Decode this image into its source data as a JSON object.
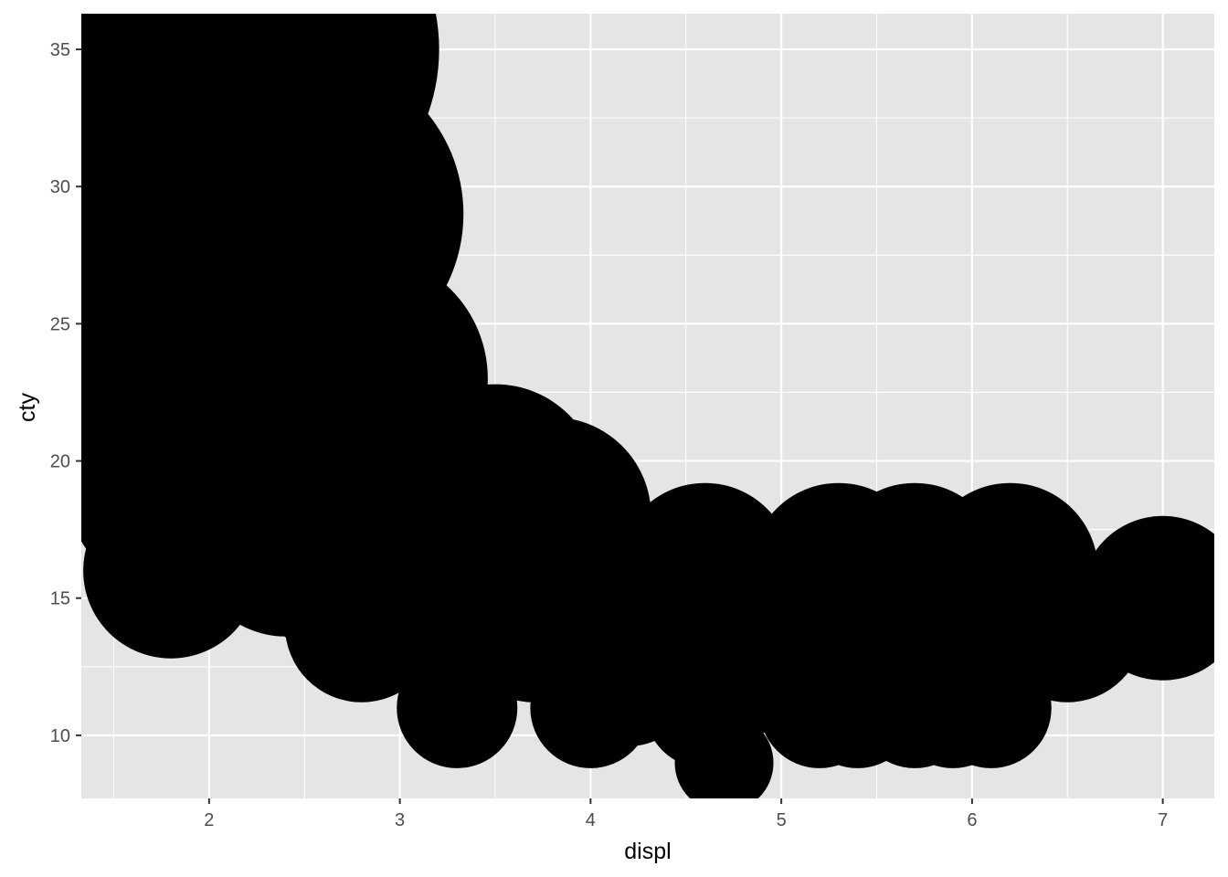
{
  "chart_data": {
    "type": "scatter",
    "title": "",
    "xlabel": "displ",
    "ylabel": "cty",
    "xlim": [
      1.33,
      7.27
    ],
    "ylim": [
      7.7,
      36.3
    ],
    "x_ticks": [
      2,
      3,
      4,
      5,
      6,
      7
    ],
    "y_ticks": [
      10,
      15,
      20,
      25,
      30,
      35
    ],
    "x_tick_labels": [
      "2",
      "3",
      "4",
      "5",
      "6",
      "7"
    ],
    "y_tick_labels": [
      "10",
      "15",
      "20",
      "25",
      "30",
      "35"
    ],
    "grid": true,
    "legend": "none",
    "point_color": "#000000",
    "panel_background": "#E5E5E5",
    "grid_color": "#FFFFFF",
    "point_size_note": "size proportional to cty",
    "points": [
      {
        "x": 1.8,
        "y": 16
      },
      {
        "x": 1.8,
        "y": 19
      },
      {
        "x": 1.8,
        "y": 21
      },
      {
        "x": 1.8,
        "y": 25
      },
      {
        "x": 1.8,
        "y": 28
      },
      {
        "x": 1.9,
        "y": 33
      },
      {
        "x": 1.9,
        "y": 35
      },
      {
        "x": 2.0,
        "y": 18
      },
      {
        "x": 2.0,
        "y": 21
      },
      {
        "x": 2.0,
        "y": 22
      },
      {
        "x": 2.0,
        "y": 26
      },
      {
        "x": 2.0,
        "y": 29
      },
      {
        "x": 2.2,
        "y": 33
      },
      {
        "x": 2.2,
        "y": 35
      },
      {
        "x": 2.4,
        "y": 17
      },
      {
        "x": 2.4,
        "y": 19
      },
      {
        "x": 2.4,
        "y": 21
      },
      {
        "x": 2.4,
        "y": 24
      },
      {
        "x": 2.5,
        "y": 20
      },
      {
        "x": 2.5,
        "y": 23
      },
      {
        "x": 2.5,
        "y": 29
      },
      {
        "x": 2.7,
        "y": 16
      },
      {
        "x": 2.7,
        "y": 19
      },
      {
        "x": 2.8,
        "y": 14
      },
      {
        "x": 2.8,
        "y": 17
      },
      {
        "x": 2.8,
        "y": 20
      },
      {
        "x": 2.8,
        "y": 23
      },
      {
        "x": 3.0,
        "y": 15
      },
      {
        "x": 3.0,
        "y": 18
      },
      {
        "x": 3.1,
        "y": 18
      },
      {
        "x": 3.3,
        "y": 11
      },
      {
        "x": 3.3,
        "y": 14
      },
      {
        "x": 3.3,
        "y": 17
      },
      {
        "x": 3.3,
        "y": 19
      },
      {
        "x": 3.5,
        "y": 15
      },
      {
        "x": 3.5,
        "y": 19
      },
      {
        "x": 3.7,
        "y": 14
      },
      {
        "x": 3.8,
        "y": 16
      },
      {
        "x": 3.8,
        "y": 18
      },
      {
        "x": 4.0,
        "y": 11
      },
      {
        "x": 4.0,
        "y": 14
      },
      {
        "x": 4.0,
        "y": 16
      },
      {
        "x": 4.2,
        "y": 12
      },
      {
        "x": 4.2,
        "y": 15
      },
      {
        "x": 4.3,
        "y": 14
      },
      {
        "x": 4.6,
        "y": 11
      },
      {
        "x": 4.6,
        "y": 13
      },
      {
        "x": 4.6,
        "y": 16
      },
      {
        "x": 4.7,
        "y": 9
      },
      {
        "x": 4.7,
        "y": 12
      },
      {
        "x": 4.7,
        "y": 14
      },
      {
        "x": 5.2,
        "y": 11
      },
      {
        "x": 5.3,
        "y": 14
      },
      {
        "x": 5.3,
        "y": 16
      },
      {
        "x": 5.4,
        "y": 11
      },
      {
        "x": 5.4,
        "y": 13
      },
      {
        "x": 5.7,
        "y": 11
      },
      {
        "x": 5.7,
        "y": 13
      },
      {
        "x": 5.7,
        "y": 16
      },
      {
        "x": 5.9,
        "y": 11
      },
      {
        "x": 6.1,
        "y": 11
      },
      {
        "x": 6.2,
        "y": 15
      },
      {
        "x": 6.2,
        "y": 16
      },
      {
        "x": 6.5,
        "y": 14
      },
      {
        "x": 7.0,
        "y": 15
      }
    ]
  }
}
